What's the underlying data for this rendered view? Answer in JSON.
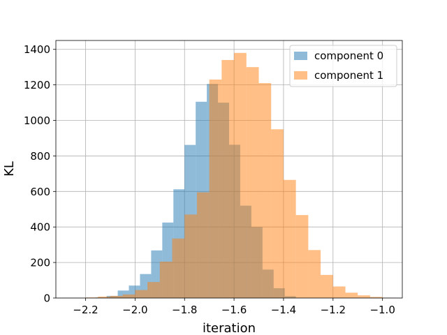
{
  "chart_data": {
    "type": "bar",
    "subtype": "overlaid-histogram",
    "title": "",
    "xlabel": "iteration",
    "ylabel": "KL",
    "xlim": [
      -2.32,
      -0.92
    ],
    "ylim": [
      0,
      1450
    ],
    "xticks": [
      -2.2,
      -2.0,
      -1.8,
      -1.6,
      -1.4,
      -1.2,
      -1.0
    ],
    "xtick_labels": [
      "−2.2",
      "−2.0",
      "−1.8",
      "−1.6",
      "−1.4",
      "−1.2",
      "−1.0"
    ],
    "yticks": [
      0,
      200,
      400,
      600,
      800,
      1000,
      1200,
      1400
    ],
    "ytick_labels": [
      "0",
      "200",
      "400",
      "600",
      "800",
      "1000",
      "1200",
      "1400"
    ],
    "grid": true,
    "legend_position": "upper-right",
    "series": [
      {
        "name": "component 0",
        "color": "#1f77b4",
        "opacity": 0.5,
        "bin_edges": [
          -2.16,
          -2.115,
          -2.07,
          -2.025,
          -1.98,
          -1.935,
          -1.89,
          -1.845,
          -1.8,
          -1.755,
          -1.71,
          -1.665,
          -1.62,
          -1.575,
          -1.53,
          -1.485,
          -1.44,
          -1.395,
          -1.35
        ],
        "values": [
          3,
          12,
          42,
          70,
          135,
          268,
          425,
          612,
          862,
          1105,
          1205,
          1100,
          863,
          520,
          400,
          160,
          55,
          10
        ]
      },
      {
        "name": "component 1",
        "color": "#ff7f0e",
        "opacity": 0.5,
        "bin_edges": [
          -2.2,
          -2.15,
          -2.1,
          -2.05,
          -2.0,
          -1.95,
          -1.9,
          -1.85,
          -1.8,
          -1.75,
          -1.7,
          -1.65,
          -1.6,
          -1.55,
          -1.5,
          -1.45,
          -1.4,
          -1.35,
          -1.3,
          -1.25,
          -1.2,
          -1.15,
          -1.1,
          -1.05,
          -1.0,
          -0.95
        ],
        "values": [
          3,
          8,
          12,
          20,
          45,
          90,
          205,
          335,
          470,
          595,
          1230,
          1340,
          1380,
          1300,
          1210,
          950,
          665,
          467,
          270,
          130,
          65,
          30,
          15,
          6,
          2
        ]
      }
    ]
  }
}
